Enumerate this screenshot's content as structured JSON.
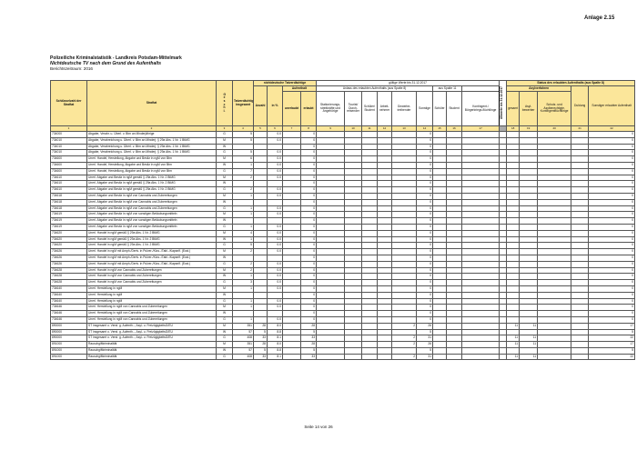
{
  "anlage": "Anlage 2.15",
  "title": "Polizeiliche Kriminalstatistik - Landkreis Potsdam-Mittelmark",
  "subtitle": "Nichtdeutsche TV nach dem Grund des Aufenthalts",
  "period": "Berichtszeitraum:   2016",
  "footer": "Seite 14 von 26",
  "header": {
    "key": "Schlüsselzahl der Straftat",
    "offense": "Straftat",
    "sex": "Geschl.",
    "total": "Tatverdächtig insgesamt",
    "nd": "nichtdeutsche Tatverdächtige",
    "valid": "gültige Werte bis 31.12.2017",
    "old": "Altwerte bis 31.12.2017",
    "status": "Status des erlaubten Aufenthalts (aus Spalte 8)",
    "count": "Anzahl",
    "pct": "in %",
    "stay": "Aufenthalt",
    "reason": "Anlass des erlaubten Aufenthalts (aus Spalte 8)",
    "from11": "aus Spalte 11",
    "asyl": "Asylverfahren",
    "unerlaubt": "unerlaubt",
    "erlaubt": "erlaubt",
    "c9": "Stationierungs-streitkräfte und Angehörige",
    "c10": "Tourist/ Durch-reisender",
    "c11": "Schüler/ Student",
    "c12": "Arbeit-nehmer",
    "c13": "Gewerbe-treibender",
    "c14": "Sonstige",
    "c15": "Schüler",
    "c16": "Student",
    "c17": "Kontingent-/ Bürgerkriegs-flüchtlinge",
    "c18": "gesamt",
    "c19": "Asyl-bewerber",
    "c20": "Schutz- und Asylberechtigte, Kontingentflüchtlinge",
    "c21": "Duldung",
    "c22": "Sonstiger erlaubter Aufenthalt",
    "numbers": [
      "1",
      "2",
      "3",
      "4",
      "5",
      "6",
      "7",
      "8",
      "9",
      "10",
      "11",
      "12",
      "13",
      "14",
      "15",
      "16",
      "17",
      "",
      "18",
      "19",
      "20",
      "21",
      "22"
    ]
  },
  "rows": [
    [
      "734000",
      "Abgabe, Verabr. u. Überl. v. Btm an Minderjährige",
      "G",
      "5",
      "",
      "0.0",
      "",
      "0",
      "",
      "",
      "",
      "",
      "",
      "0",
      "",
      "",
      "",
      "",
      "",
      "",
      "",
      "",
      "0"
    ],
    [
      "734010",
      "Abgabe, Verabreichung u. Überl. v. Btm an Minderj. § 29a Abs. 1 Nr. 1 BtMG",
      "M",
      "5",
      "",
      "0.0",
      "",
      "0",
      "",
      "",
      "",
      "",
      "",
      "0",
      "",
      "",
      "",
      "",
      "",
      "",
      "",
      "",
      "0"
    ],
    [
      "734010",
      "Abgabe, Verabreichung u. Überl. v. Btm an Minderj. § 29a Abs. 1 Nr. 1 BtMG",
      "W",
      "",
      "",
      "",
      "",
      "0",
      "",
      "",
      "",
      "",
      "",
      "0",
      "",
      "",
      "",
      "",
      "",
      "",
      "",
      "",
      "0"
    ],
    [
      "734010",
      "Abgabe, Verabreichung u. Überl. v. Btm an Minderj. § 29a Abs. 1 Nr. 1 BtMG",
      "G",
      "5",
      "",
      "0.0",
      "",
      "0",
      "",
      "",
      "",
      "",
      "",
      "0",
      "",
      "",
      "",
      "",
      "",
      "",
      "",
      "",
      "0"
    ],
    [
      "734600",
      "Unerl. Handel, Herstellung, Abgabe und Besitz in ngM von Btm",
      "M",
      "6",
      "",
      "0.0",
      "",
      "0",
      "",
      "",
      "",
      "",
      "",
      "0",
      "",
      "",
      "",
      "",
      "",
      "",
      "",
      "",
      "0"
    ],
    [
      "734600",
      "Unerl. Handel, Herstellung, Abgabe und Besitz in ngM von Btm",
      "W",
      "1",
      "",
      "0.0",
      "",
      "0",
      "",
      "",
      "",
      "",
      "",
      "0",
      "",
      "",
      "",
      "",
      "",
      "",
      "",
      "",
      "0"
    ],
    [
      "734600",
      "Unerl. Handel, Herstellung, Abgabe und Besitz in ngM von Btm",
      "G",
      "7",
      "",
      "0.0",
      "",
      "0",
      "",
      "",
      "",
      "",
      "",
      "0",
      "",
      "",
      "",
      "",
      "",
      "",
      "",
      "",
      "0"
    ],
    [
      "734610",
      "Unerl. Abgabe und Besitz in ngM gemäß § 29a Abs. 1 Nr. 2 BtMG",
      "M",
      "2",
      "",
      "0.0",
      "",
      "0",
      "",
      "",
      "",
      "",
      "",
      "0",
      "",
      "",
      "",
      "",
      "",
      "",
      "",
      "",
      "0"
    ],
    [
      "734610",
      "Unerl. Abgabe und Besitz in ngM gemäß § 29a Abs. 1 Nr. 2 BtMG",
      "W",
      "",
      "",
      "",
      "",
      "0",
      "",
      "",
      "",
      "",
      "",
      "0",
      "",
      "",
      "",
      "",
      "",
      "",
      "",
      "",
      "0"
    ],
    [
      "734610",
      "Unerl. Abgabe und Besitz in ngM gemäß § 29a Abs. 1 Nr. 2 BtMG",
      "G",
      "2",
      "",
      "0.0",
      "",
      "0",
      "",
      "",
      "",
      "",
      "",
      "0",
      "",
      "",
      "",
      "",
      "",
      "",
      "",
      "",
      "0"
    ],
    [
      "734618",
      "Unerl. Abgabe und Besitz in ngM von Cannabis und Zubereitungen",
      "M",
      "1",
      "",
      "0.0",
      "",
      "0",
      "",
      "",
      "",
      "",
      "",
      "0",
      "",
      "",
      "",
      "",
      "",
      "",
      "",
      "",
      "0"
    ],
    [
      "734618",
      "Unerl. Abgabe und Besitz in ngM von Cannabis und Zubereitungen",
      "W",
      "",
      "",
      "",
      "",
      "0",
      "",
      "",
      "",
      "",
      "",
      "0",
      "",
      "",
      "",
      "",
      "",
      "",
      "",
      "",
      "0"
    ],
    [
      "734618",
      "Unerl. Abgabe und Besitz in ngM von Cannabis und Zubereitungen",
      "G",
      "1",
      "",
      "0.0",
      "",
      "0",
      "",
      "",
      "",
      "",
      "",
      "0",
      "",
      "",
      "",
      "",
      "",
      "",
      "",
      "",
      "0"
    ],
    [
      "734619",
      "Unerl. Abgabe und Besitz in ngM von sonstigen Betäubungsmitteln",
      "M",
      "1",
      "",
      "0.0",
      "",
      "0",
      "",
      "",
      "",
      "",
      "",
      "0",
      "",
      "",
      "",
      "",
      "",
      "",
      "",
      "",
      "0"
    ],
    [
      "734619",
      "Unerl. Abgabe und Besitz in ngM von sonstigen Betäubungsmitteln",
      "W",
      "",
      "",
      "",
      "",
      "0",
      "",
      "",
      "",
      "",
      "",
      "0",
      "",
      "",
      "",
      "",
      "",
      "",
      "",
      "",
      "0"
    ],
    [
      "734619",
      "Unerl. Abgabe und Besitz in ngM von sonstigen Betäubungsmitteln",
      "G",
      "1",
      "",
      "0.0",
      "",
      "0",
      "",
      "",
      "",
      "",
      "",
      "0",
      "",
      "",
      "",
      "",
      "",
      "",
      "",
      "",
      "0"
    ],
    [
      "734620",
      "Unerl. Handel in ngM gemäß § 29a Abs. 1 Nr. 2 BtMG",
      "M",
      "4",
      "",
      "0.0",
      "",
      "0",
      "",
      "",
      "",
      "",
      "",
      "0",
      "",
      "",
      "",
      "",
      "",
      "",
      "",
      "",
      "0"
    ],
    [
      "734620",
      "Unerl. Handel in ngM gemäß § 29a Abs. 1 Nr. 2 BtMG",
      "W",
      "1",
      "",
      "0.0",
      "",
      "0",
      "",
      "",
      "",
      "",
      "",
      "0",
      "",
      "",
      "",
      "",
      "",
      "",
      "",
      "",
      "0"
    ],
    [
      "734620",
      "Unerl. Handel in ngM gemäß § 29a Abs. 1 Nr. 2 BtMG",
      "G",
      "5",
      "",
      "0.0",
      "",
      "0",
      "",
      "",
      "",
      "",
      "",
      "0",
      "",
      "",
      "",
      "",
      "",
      "",
      "",
      "",
      "0"
    ],
    [
      "734626",
      "Unerl. Handel in ngM mit Amph./Deriv. in Pulver-/Kios.-/Tabl.-/Kapself. (Ecst.)",
      "M",
      "2",
      "",
      "0.0",
      "",
      "0",
      "",
      "",
      "",
      "",
      "",
      "0",
      "",
      "",
      "",
      "",
      "",
      "",
      "",
      "",
      "0"
    ],
    [
      "734626",
      "Unerl. Handel in ngM mit Amph./Deriv. in Pulver-/Kios.-/Tabl.-/Kapself. (Ecst.)",
      "W",
      "",
      "",
      "",
      "",
      "0",
      "",
      "",
      "",
      "",
      "",
      "0",
      "",
      "",
      "",
      "",
      "",
      "",
      "",
      "",
      "0"
    ],
    [
      "734626",
      "Unerl. Handel in ngM mit Amph./Deriv. in Pulver-/Kios.-/Tabl.-/Kapself. (Ecst.)",
      "G",
      "2",
      "",
      "0.0",
      "",
      "0",
      "",
      "",
      "",
      "",
      "",
      "0",
      "",
      "",
      "",
      "",
      "",
      "",
      "",
      "",
      "0"
    ],
    [
      "734628",
      "Unerl. Handel in ngM von Cannabis und Zubereitungen",
      "M",
      "2",
      "",
      "0.0",
      "",
      "0",
      "",
      "",
      "",
      "",
      "",
      "0",
      "",
      "",
      "",
      "",
      "",
      "",
      "",
      "",
      "0"
    ],
    [
      "734628",
      "Unerl. Handel in ngM von Cannabis und Zubereitungen",
      "W",
      "1",
      "",
      "0.0",
      "",
      "0",
      "",
      "",
      "",
      "",
      "",
      "0",
      "",
      "",
      "",
      "",
      "",
      "",
      "",
      "",
      "0"
    ],
    [
      "734628",
      "Unerl. Handel in ngM von Cannabis und Zubereitungen",
      "G",
      "3",
      "",
      "0.0",
      "",
      "0",
      "",
      "",
      "",
      "",
      "",
      "0",
      "",
      "",
      "",
      "",
      "",
      "",
      "",
      "",
      "0"
    ],
    [
      "734640",
      "Unerl. Herstellung in ngM",
      "M",
      "1",
      "",
      "0.0",
      "",
      "0",
      "",
      "",
      "",
      "",
      "",
      "0",
      "",
      "",
      "",
      "",
      "",
      "",
      "",
      "",
      "0"
    ],
    [
      "734640",
      "Unerl. Herstellung in ngM",
      "W",
      "",
      "",
      "",
      "",
      "0",
      "",
      "",
      "",
      "",
      "",
      "0",
      "",
      "",
      "",
      "",
      "",
      "",
      "",
      "",
      "0"
    ],
    [
      "734640",
      "Unerl. Herstellung in ngM",
      "G",
      "1",
      "",
      "0.0",
      "",
      "0",
      "",
      "",
      "",
      "",
      "",
      "0",
      "",
      "",
      "",
      "",
      "",
      "",
      "",
      "",
      "0"
    ],
    [
      "734646",
      "Unerl. Herstellung in ngM von Cannabis und Zubereitungen",
      "M",
      "1",
      "",
      "0.0",
      "",
      "0",
      "",
      "",
      "",
      "",
      "",
      "0",
      "",
      "",
      "",
      "",
      "",
      "",
      "",
      "",
      "0"
    ],
    [
      "734646",
      "Unerl. Herstellung in ngM von Cannabis und Zubereitungen",
      "W",
      "",
      "",
      "",
      "",
      "0",
      "",
      "",
      "",
      "",
      "",
      "0",
      "",
      "",
      "",
      "",
      "",
      "",
      "",
      "",
      "0"
    ],
    [
      "734646",
      "Unerl. Herstellung in ngM von Cannabis und Zubereitungen",
      "G",
      "1",
      "",
      "0.0",
      "",
      "0",
      "",
      "",
      "",
      "",
      "",
      "0",
      "",
      "",
      "",
      "",
      "",
      "",
      "",
      "",
      "0"
    ],
    [
      "890000",
      "ST insgesamt o. Verst. g. Aufenth.-, Asyl- u. FreizügigkeitsG/EU",
      "M",
      "351",
      "28",
      "8.0",
      "",
      "28",
      "",
      "",
      "",
      "",
      "2",
      "26",
      "",
      "",
      "",
      "",
      "11",
      "11",
      "",
      "",
      "17"
    ],
    [
      "890000",
      "ST insgesamt o. Verst. g. Aufenth.-, Asyl- u. FreizügigkeitsG/EU",
      "W",
      "57",
      "5",
      "8.8",
      "",
      "5",
      "",
      "",
      "",
      "",
      "",
      "5",
      "",
      "",
      "",
      "",
      "",
      "",
      "",
      "",
      "5"
    ],
    [
      "890000",
      "ST insgesamt o. Verst. g. Aufenth.-, Asyl- u. FreizügigkeitsG/EU",
      "G",
      "408",
      "33",
      "8.1",
      "",
      "33",
      "",
      "",
      "",
      "",
      "2",
      "31",
      "",
      "",
      "",
      "",
      "11",
      "11",
      "",
      "",
      "22"
    ],
    [
      "891000",
      "Rauschgiftkriminalität",
      "M",
      "351",
      "28",
      "8.0",
      "",
      "28",
      "",
      "",
      "",
      "",
      "2",
      "26",
      "",
      "",
      "",
      "",
      "11",
      "11",
      "",
      "",
      "17"
    ],
    [
      "891000",
      "Rauschgiftkriminalität",
      "W",
      "57",
      "5",
      "8.8",
      "",
      "5",
      "",
      "",
      "",
      "",
      "",
      "5",
      "",
      "",
      "",
      "",
      "",
      "",
      "",
      "",
      "5"
    ],
    [
      "891000",
      "Rauschgiftkriminalität",
      "G",
      "408",
      "33",
      "8.1",
      "",
      "33",
      "",
      "",
      "",
      "",
      "2",
      "31",
      "",
      "",
      "",
      "",
      "11",
      "11",
      "",
      "",
      "22"
    ]
  ]
}
